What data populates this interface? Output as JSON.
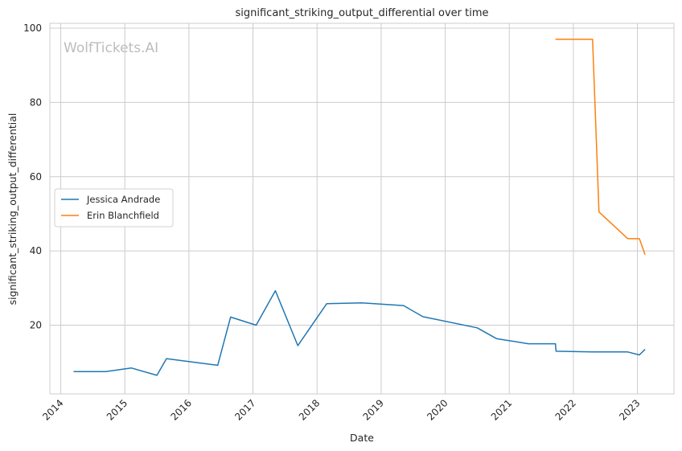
{
  "chart_data": {
    "type": "line",
    "title": "significant_striking_output_differential over time",
    "xlabel": "Date",
    "ylabel": "significant_striking_output_differential",
    "watermark": "WolfTickets.AI",
    "xlim": [
      2013.83,
      2023.57
    ],
    "ylim": [
      1.5,
      101.3
    ],
    "x_ticks": [
      2014,
      2015,
      2016,
      2017,
      2018,
      2019,
      2020,
      2021,
      2022,
      2023
    ],
    "x_tick_labels": [
      "2014",
      "2015",
      "2016",
      "2017",
      "2018",
      "2019",
      "2020",
      "2021",
      "2022",
      "2023"
    ],
    "y_ticks": [
      20,
      40,
      60,
      80,
      100
    ],
    "y_tick_labels": [
      "20",
      "40",
      "60",
      "80",
      "100"
    ],
    "grid": true,
    "legend_position": "center-left",
    "series": [
      {
        "name": "Jessica Andrade",
        "color": "#1f77b4",
        "x": [
          2014.2,
          2014.7,
          2015.1,
          2015.5,
          2015.65,
          2016.45,
          2016.65,
          2017.05,
          2017.35,
          2017.7,
          2018.15,
          2018.7,
          2019.35,
          2019.65,
          2020.5,
          2020.8,
          2021.3,
          2021.72,
          2021.73,
          2022.3,
          2022.85,
          2023.03,
          2023.12
        ],
        "y": [
          7.5,
          7.5,
          8.5,
          6.5,
          11.0,
          9.2,
          22.2,
          20.0,
          29.3,
          14.5,
          25.8,
          26.0,
          25.3,
          22.3,
          19.3,
          16.4,
          15.0,
          15.0,
          13.0,
          12.8,
          12.8,
          12.0,
          13.5
        ]
      },
      {
        "name": "Erin Blanchfield",
        "color": "#ff7f0e",
        "x": [
          2021.72,
          2022.15,
          2022.3,
          2022.4,
          2022.85,
          2023.03,
          2023.12
        ],
        "y": [
          97.0,
          97.0,
          97.0,
          50.5,
          43.3,
          43.3,
          39.0
        ]
      }
    ]
  }
}
